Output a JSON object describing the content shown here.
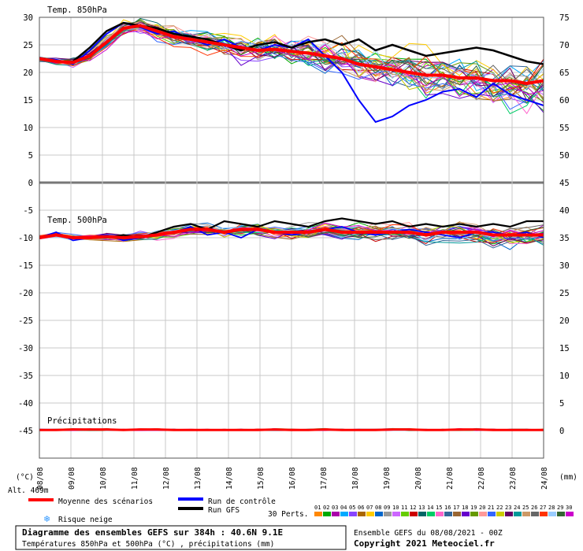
{
  "chart_data": {
    "type": "line",
    "left_axis": {
      "ticks": [
        "30",
        "25",
        "20",
        "15",
        "10",
        "5",
        "0",
        "-5",
        "-10",
        "-15",
        "-20",
        "-25",
        "-30",
        "-35",
        "-40",
        "-45"
      ],
      "range": [
        -50,
        30
      ],
      "unit_label": "(°C)",
      "alt_label": "Alt. 469m"
    },
    "right_axis": {
      "ticks": [
        "75",
        "70",
        "65",
        "60",
        "55",
        "50",
        "45",
        "40",
        "35",
        "30",
        "25",
        "20",
        "15",
        "10",
        "5",
        "0"
      ],
      "range": [
        -5,
        75
      ],
      "unit_label": "(mm)"
    },
    "x_labels": [
      "08/08",
      "09/08",
      "10/08",
      "11/08",
      "12/08",
      "13/08",
      "14/08",
      "15/08",
      "16/08",
      "17/08",
      "18/08",
      "19/08",
      "20/08",
      "21/08",
      "22/08",
      "23/08",
      "24/08"
    ],
    "grid": true,
    "panels": [
      {
        "label": "Temp. 850hPa"
      },
      {
        "label": "Temp. 500hPa"
      },
      {
        "label": "Précipitations"
      }
    ],
    "series_850": {
      "mean": [
        22.5,
        22.0,
        21.8,
        23.0,
        25.5,
        28.0,
        28.5,
        27.5,
        26.5,
        26.0,
        25.5,
        25.0,
        24.5,
        24.0,
        24.2,
        23.8,
        23.5,
        23.0,
        22.5,
        21.5,
        21.0,
        20.5,
        20.0,
        19.5,
        19.5,
        19.0,
        19.0,
        18.5,
        18.5,
        18.0,
        18.5
      ],
      "control": [
        22.5,
        22.3,
        21.5,
        24.0,
        27.0,
        29.0,
        28.2,
        27.0,
        27.5,
        26.0,
        25.0,
        26.0,
        24.5,
        24.0,
        25.0,
        24.5,
        26.0,
        23.0,
        20.0,
        15.0,
        11.0,
        12.0,
        14.0,
        15.0,
        16.5,
        17.0,
        15.5,
        18.0,
        16.0,
        15.0,
        14.0
      ],
      "gfs": [
        22.5,
        22.0,
        22.0,
        24.5,
        27.5,
        29.0,
        28.5,
        28.0,
        27.0,
        26.5,
        26.0,
        25.0,
        24.0,
        25.0,
        25.5,
        24.5,
        25.5,
        26.0,
        25.0,
        26.0,
        24.0,
        25.0,
        24.0,
        23.0,
        23.5,
        24.0,
        24.5,
        24.0,
        23.0,
        22.0,
        21.5
      ]
    },
    "series_500": {
      "mean": [
        -10.0,
        -9.5,
        -10.0,
        -10.0,
        -9.8,
        -10.0,
        -9.8,
        -9.5,
        -9.0,
        -8.5,
        -8.5,
        -9.0,
        -8.5,
        -8.5,
        -9.0,
        -9.0,
        -9.0,
        -8.5,
        -9.0,
        -9.0,
        -9.0,
        -9.0,
        -9.0,
        -9.5,
        -9.0,
        -9.0,
        -9.0,
        -9.5,
        -9.5,
        -9.5,
        -9.5
      ],
      "control": [
        -10.0,
        -9.0,
        -10.5,
        -10.0,
        -9.5,
        -10.5,
        -10.0,
        -9.5,
        -9.0,
        -8.0,
        -9.5,
        -9.0,
        -10.0,
        -8.5,
        -9.0,
        -9.5,
        -9.0,
        -8.5,
        -8.0,
        -9.0,
        -9.5,
        -9.0,
        -8.5,
        -9.0,
        -9.5,
        -10.0,
        -9.0,
        -9.0,
        -9.5,
        -9.0,
        -10.0
      ],
      "gfs": [
        -10.0,
        -9.5,
        -10.0,
        -10.0,
        -10.0,
        -9.5,
        -10.0,
        -9.0,
        -8.0,
        -7.5,
        -8.5,
        -7.0,
        -7.5,
        -8.0,
        -7.0,
        -7.5,
        -8.0,
        -7.0,
        -6.5,
        -7.0,
        -7.5,
        -7.0,
        -8.0,
        -7.5,
        -8.0,
        -7.5,
        -8.0,
        -7.5,
        -8.0,
        -7.0,
        -7.0
      ]
    },
    "precip_mean": [
      0.1,
      0.1,
      0.2,
      0.2,
      0.2,
      0.1,
      0.2,
      0.2,
      0.1,
      0.1,
      0.1,
      0.1,
      0.1,
      0.1,
      0.2,
      0.1,
      0.1,
      0.2,
      0.1,
      0.1,
      0.1,
      0.2,
      0.2,
      0.1,
      0.1,
      0.2,
      0.2,
      0.1,
      0.1,
      0.1,
      0.1
    ],
    "colors": {
      "mean": "#ff0000",
      "control": "#0000ff",
      "gfs": "#000000",
      "members": [
        "#ff8800",
        "#00aa00",
        "#aa00aa",
        "#00aaff",
        "#8844ff",
        "#aa6600",
        "#ffcc00",
        "#0066cc",
        "#999999",
        "#cc66ff",
        "#66cc00",
        "#cc0000",
        "#006666",
        "#00cc66",
        "#ff66cc",
        "#336699",
        "#996633",
        "#6600cc",
        "#669900",
        "#ff9999",
        "#3366ff",
        "#cccc00",
        "#660066",
        "#009999",
        "#cc9966",
        "#666666",
        "#ff3300",
        "#99ccff",
        "#336633",
        "#cc00cc"
      ]
    }
  },
  "legend": {
    "mean_label": "Moyenne des scénarios",
    "control_label": "Run de contrôle",
    "gfs_label": "Run GFS",
    "snow_label": "Risque neige",
    "members_label": "30 Perts.",
    "member_numbers": [
      "01",
      "02",
      "03",
      "04",
      "05",
      "06",
      "07",
      "08",
      "09",
      "10",
      "11",
      "12",
      "13",
      "14",
      "15",
      "16",
      "17",
      "18",
      "19",
      "20",
      "21",
      "22",
      "23",
      "24",
      "25",
      "26",
      "27",
      "28",
      "29",
      "30"
    ]
  },
  "footer": {
    "title": "Diagramme des ensembles GEFS sur 384h : 40.6N 9.1E",
    "subtitle": "Températures 850hPa et 500hPa (°C) , précipitations (mm)",
    "run_info": "Ensemble GEFS du 08/08/2021 - 00Z",
    "copyright": "Copyright 2021 Meteociel.fr"
  }
}
